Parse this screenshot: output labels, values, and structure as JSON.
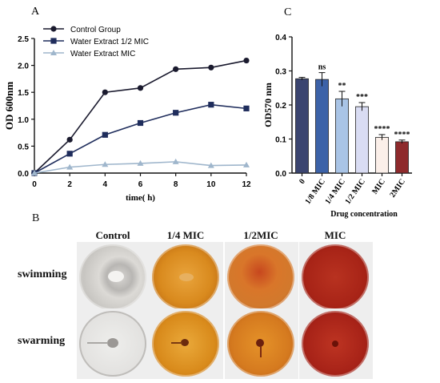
{
  "panels": {
    "a": "A",
    "b": "B",
    "c": "C"
  },
  "chart_data": [
    {
      "type": "line",
      "panel": "A",
      "xlabel": "time( h)",
      "ylabel": "OD 600nm",
      "xlim": [
        0,
        12
      ],
      "ylim": [
        0,
        2.5
      ],
      "x": [
        0,
        2,
        4,
        6,
        8,
        10,
        12
      ],
      "xticks": [
        "0",
        "2",
        "4",
        "6",
        "8",
        "10",
        "12"
      ],
      "yticks": [
        "0.0",
        "0.5",
        "1.0",
        "1.5",
        "2.0",
        "2.5"
      ],
      "legend_position": "top-left",
      "series": [
        {
          "name": "Control Group",
          "values": [
            0.0,
            0.62,
            1.5,
            1.58,
            1.93,
            1.96,
            2.09
          ],
          "color": "#1a1a2e",
          "marker": "circle"
        },
        {
          "name": "Water Extract 1/2 MIC",
          "values": [
            0.0,
            0.36,
            0.71,
            0.93,
            1.12,
            1.27,
            1.2
          ],
          "color": "#1f2d5c",
          "marker": "square"
        },
        {
          "name": "Water Extract  MIC",
          "values": [
            0.0,
            0.11,
            0.16,
            0.18,
            0.21,
            0.14,
            0.15
          ],
          "color": "#9fb6cc",
          "marker": "triangle"
        }
      ]
    },
    {
      "type": "bar",
      "panel": "C",
      "xlabel": "Drug concentration",
      "ylabel": "OD570 nm",
      "ylim": [
        0,
        0.4
      ],
      "yticks": [
        "0.0",
        "0.1",
        "0.2",
        "0.3",
        "0.4"
      ],
      "categories": [
        "0",
        "1/8 MIC",
        "1/4 MIC",
        "1/2 MIC",
        "MIC",
        "2MIC"
      ],
      "values": [
        0.277,
        0.275,
        0.218,
        0.195,
        0.105,
        0.092
      ],
      "errors": [
        0.004,
        0.02,
        0.022,
        0.012,
        0.008,
        0.005
      ],
      "significance": [
        "",
        "ns",
        "**",
        "***",
        "****",
        "****"
      ],
      "colors": [
        "#3b4570",
        "#3c62a8",
        "#a9c4e6",
        "#d9dcf3",
        "#fbefe9",
        "#8e2a2c"
      ]
    }
  ],
  "panel_b": {
    "columns": [
      "Control",
      "1/4 MIC",
      "1/2MIC",
      "MIC"
    ],
    "rows": [
      "swimming",
      "swarming"
    ]
  }
}
